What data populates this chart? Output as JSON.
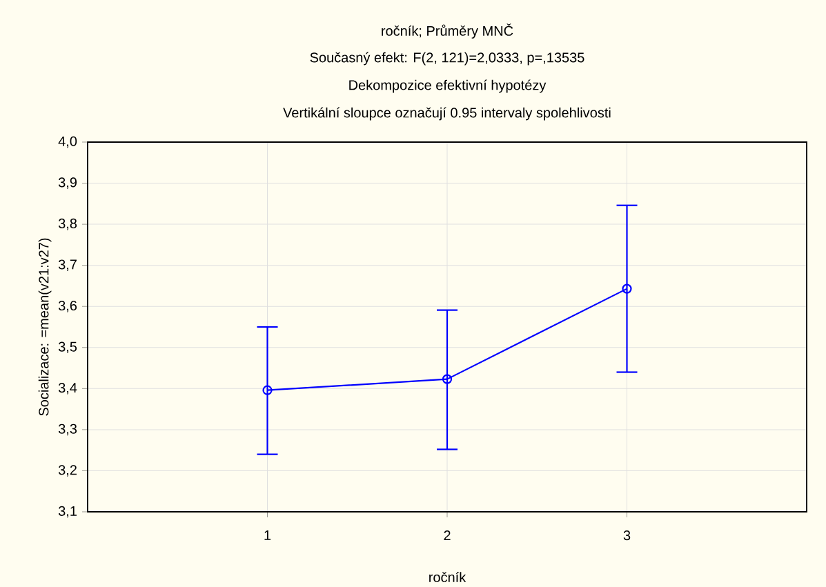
{
  "chart_data": {
    "type": "line",
    "title": "ročník; Průměry MNČ",
    "subtitle": "Současný efekt: F(2, 121)=2,0333, p=,13535",
    "annotations": [
      "Dekompozice efektivní hypotézy",
      "Vertikální sloupce označují 0.95 intervaly spolehlivosti"
    ],
    "xlabel": "ročník",
    "ylabel": "Socializace: =mean(v21:v27)",
    "categories": [
      "1",
      "2",
      "3"
    ],
    "series": [
      {
        "color": "#0000ff",
        "values": [
          3.396,
          3.423,
          3.643
        ],
        "errors": [
          [
            3.24,
            3.55
          ],
          [
            3.252,
            3.591
          ],
          [
            3.44,
            3.846
          ]
        ]
      }
    ],
    "ylim": [
      3.1,
      4.0
    ],
    "yticks": [
      {
        "value": 3.1,
        "label": "3,1"
      },
      {
        "value": 3.2,
        "label": "3,2"
      },
      {
        "value": 3.3,
        "label": "3,3"
      },
      {
        "value": 3.4,
        "label": "3,4"
      },
      {
        "value": 3.5,
        "label": "3,5"
      },
      {
        "value": 3.6,
        "label": "3,6"
      },
      {
        "value": 3.7,
        "label": "3,7"
      },
      {
        "value": 3.8,
        "label": "3,8"
      },
      {
        "value": 3.9,
        "label": "3,9"
      },
      {
        "value": 4.0,
        "label": "4,0"
      }
    ],
    "grid": true,
    "marker": "circle",
    "line_style": "solid"
  }
}
